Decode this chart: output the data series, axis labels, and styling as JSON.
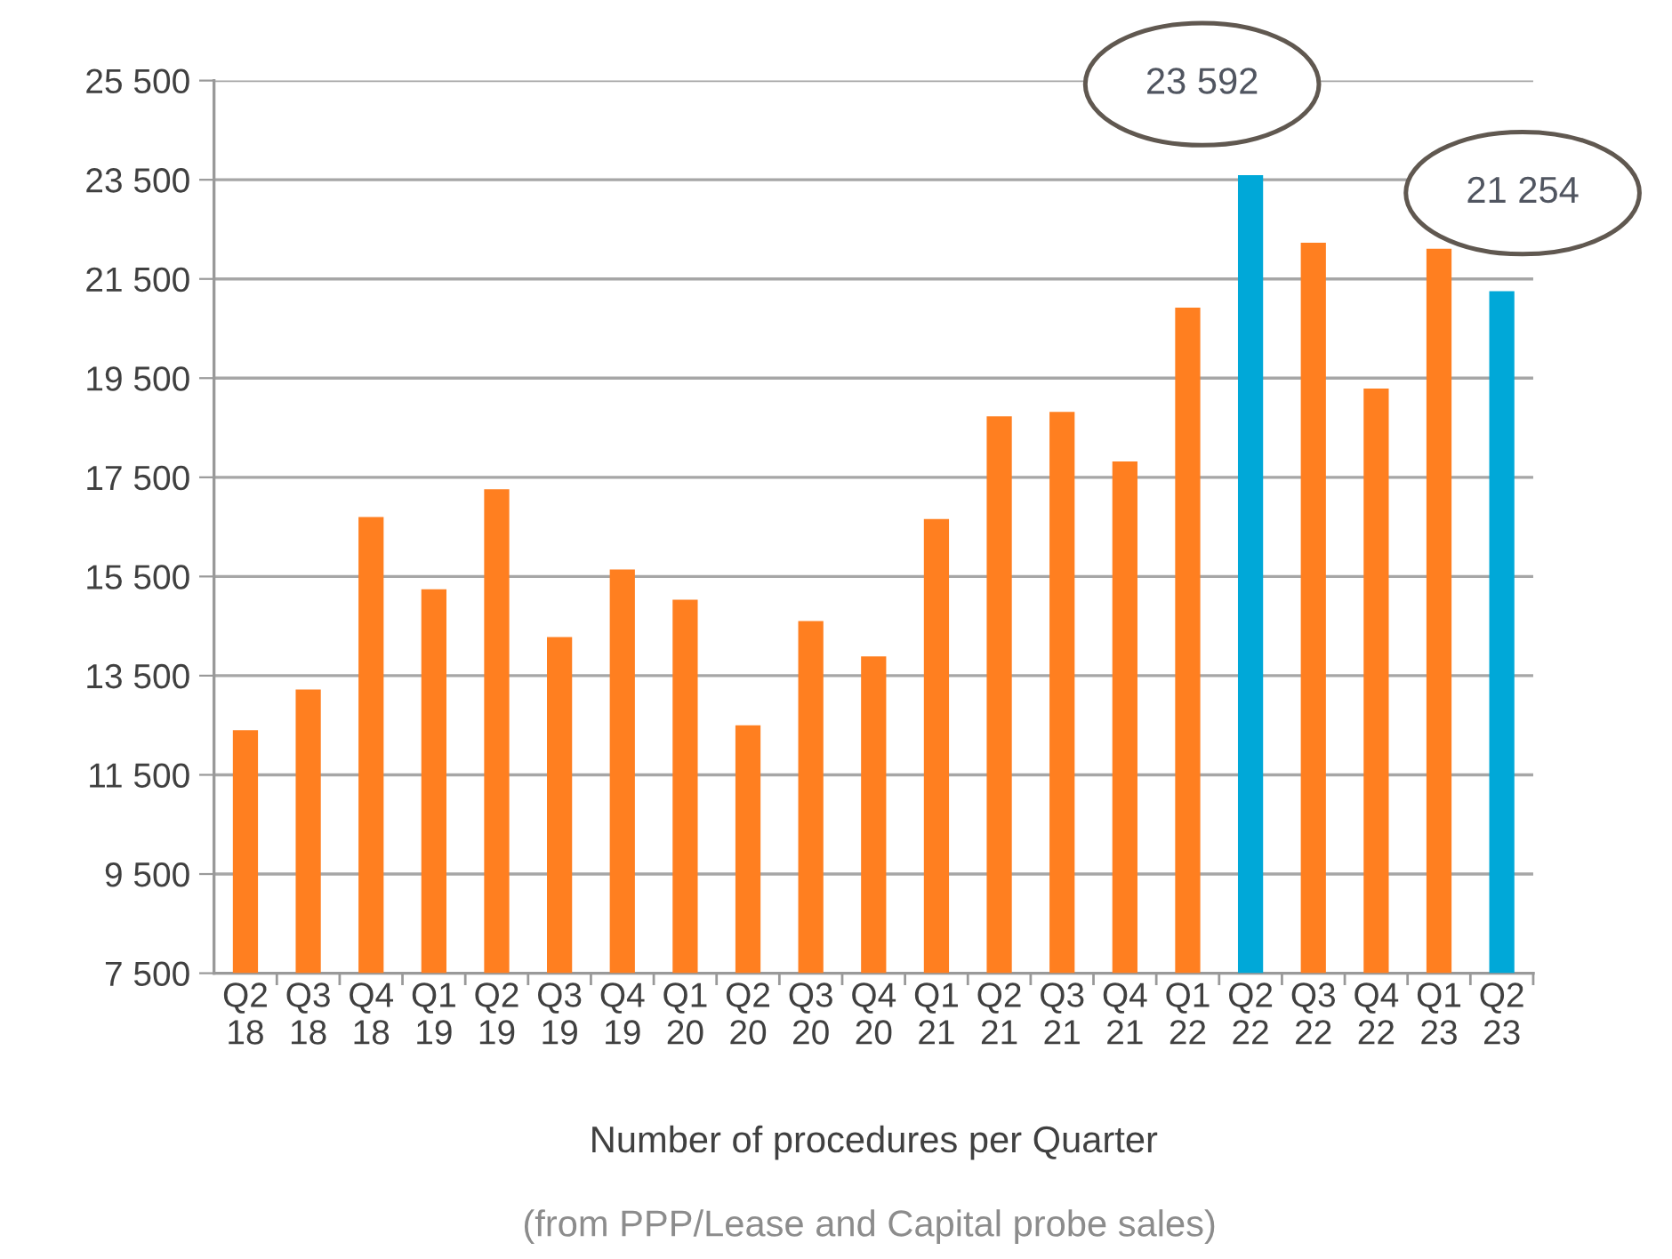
{
  "chart_data": {
    "type": "bar",
    "xlabel": "Number of procedures per Quarter",
    "annotations": [
      "(from PPP/Lease and Capital probe sales)",
      "23 592",
      "21 254"
    ],
    "categories": [
      "Q2\n18",
      "Q3\n18",
      "Q4\n18",
      "Q1\n19",
      "Q2\n19",
      "Q3\n19",
      "Q4\n19",
      "Q1\n20",
      "Q2\n20",
      "Q3\n20",
      "Q4\n20",
      "Q1\n21",
      "Q2\n21",
      "Q3\n21",
      "Q4\n21",
      "Q1\n22",
      "Q2\n22",
      "Q3\n22",
      "Q4\n22",
      "Q1\n23",
      "Q2\n23"
    ],
    "values": [
      12400,
      13220,
      16700,
      15240,
      17260,
      14280,
      15640,
      15030,
      12500,
      14600,
      13890,
      16660,
      18730,
      18820,
      17820,
      20920,
      23592,
      22230,
      19290,
      22110,
      21254
    ],
    "colors": [
      "#ff7f20",
      "#ff7f20",
      "#ff7f20",
      "#ff7f20",
      "#ff7f20",
      "#ff7f20",
      "#ff7f20",
      "#ff7f20",
      "#ff7f20",
      "#ff7f20",
      "#ff7f20",
      "#ff7f20",
      "#ff7f20",
      "#ff7f20",
      "#ff7f20",
      "#ff7f20",
      "#00a8d8",
      "#ff7f20",
      "#ff7f20",
      "#ff7f20",
      "#00a8d8"
    ],
    "ylim": [
      7500,
      25500
    ],
    "yticks": [
      {
        "value": 7500,
        "label": "7 500"
      },
      {
        "value": 9500,
        "label": "9 500"
      },
      {
        "value": 11500,
        "label": "11 500"
      },
      {
        "value": 13500,
        "label": "13 500"
      },
      {
        "value": 15500,
        "label": "15 500"
      },
      {
        "value": 17500,
        "label": "17 500"
      },
      {
        "value": 19500,
        "label": "19 500"
      },
      {
        "value": 21500,
        "label": "21 500"
      },
      {
        "value": 23500,
        "label": "23 500"
      },
      {
        "value": 25500,
        "label": "25 500"
      }
    ],
    "grid": "y"
  }
}
